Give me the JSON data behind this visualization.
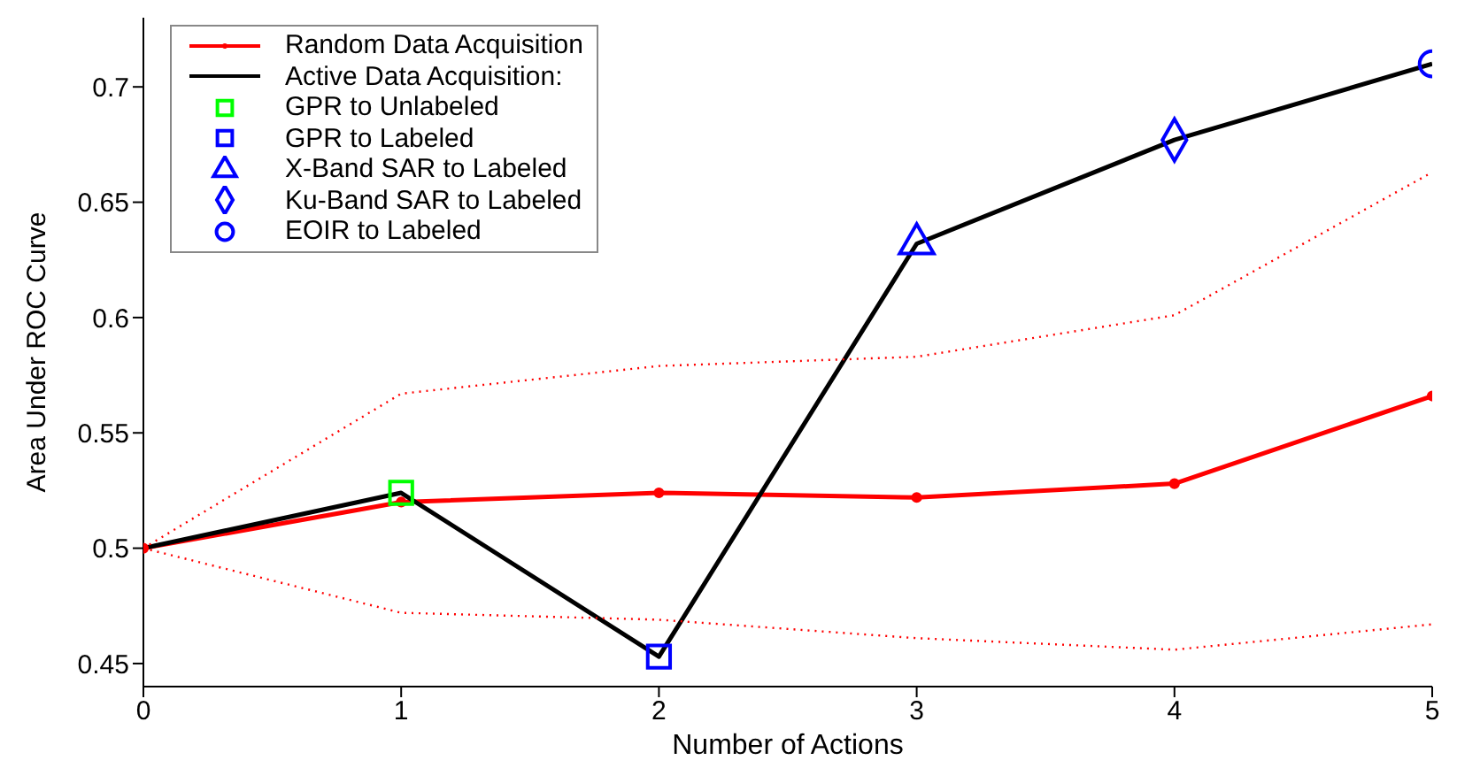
{
  "chart_data": {
    "type": "line",
    "xlabel": "Number of Actions",
    "ylabel": "Area Under ROC Curve",
    "xlim": [
      0,
      5
    ],
    "xticks": [
      0,
      1,
      2,
      3,
      4,
      5
    ],
    "ylim": [
      0.44,
      0.73
    ],
    "yticks": [
      0.45,
      0.5,
      0.55,
      0.6,
      0.65,
      0.7
    ],
    "grid": false,
    "legend": "top left",
    "x": [
      0,
      1,
      2,
      3,
      4,
      5
    ],
    "series": [
      {
        "name": "Random Data Acquisition",
        "color": "#ff0000",
        "marker": "circle",
        "values": [
          0.5,
          0.52,
          0.524,
          0.522,
          0.528,
          0.566
        ]
      },
      {
        "name": "Active Data Acquisition:",
        "color": "#000000",
        "marker": "none",
        "values": [
          0.5,
          0.524,
          0.453,
          0.632,
          0.677,
          0.71
        ]
      },
      {
        "name": "GPR to Unlabeled",
        "type": "scatter",
        "color": "#00ff00",
        "marker": "square",
        "x": [
          1
        ],
        "values": [
          0.524
        ]
      },
      {
        "name": "GPR to Labeled",
        "type": "scatter",
        "color": "#0000ff",
        "marker": "square",
        "x": [
          2
        ],
        "values": [
          0.453
        ]
      },
      {
        "name": "X-Band SAR to Labeled",
        "type": "scatter",
        "color": "#0000ff",
        "marker": "triangle",
        "x": [
          3
        ],
        "values": [
          0.632
        ]
      },
      {
        "name": "Ku-Band SAR to Labeled",
        "type": "scatter",
        "color": "#0000ff",
        "marker": "diamond",
        "x": [
          4
        ],
        "values": [
          0.677
        ]
      },
      {
        "name": "EOIR to Labeled",
        "type": "scatter",
        "color": "#0000ff",
        "marker": "circle",
        "x": [
          5
        ],
        "values": [
          0.71
        ]
      },
      {
        "color": "#ff0000",
        "line_style": "dotted",
        "marker": "none",
        "values": [
          0.5,
          0.567,
          0.579,
          0.583,
          0.601,
          0.663
        ]
      },
      {
        "color": "#ff0000",
        "line_style": "dotted",
        "marker": "none",
        "values": [
          0.5,
          0.472,
          0.469,
          0.461,
          0.456,
          0.467
        ]
      }
    ]
  }
}
